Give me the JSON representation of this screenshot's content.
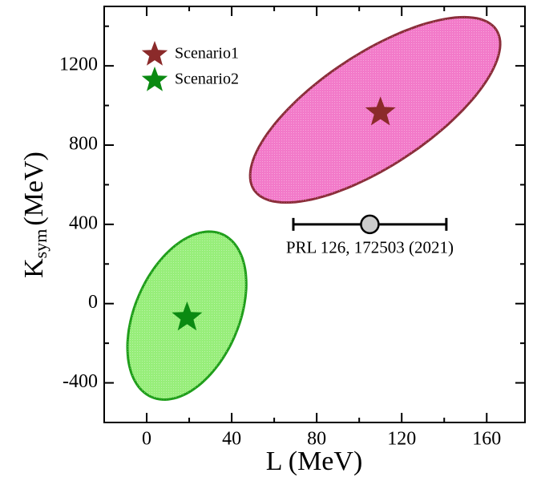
{
  "chart_data": {
    "type": "scatter",
    "xlabel": "L (MeV)",
    "ylabel": {
      "main": "K",
      "sub": "sym",
      "unit": "(MeV)"
    },
    "xlim": [
      -20,
      178
    ],
    "ylim": [
      -600,
      1500
    ],
    "xticks": [
      0,
      40,
      80,
      120,
      160
    ],
    "yticks": [
      -400,
      0,
      400,
      800,
      1200
    ],
    "xminorticks": [
      -20,
      20,
      60,
      100,
      140
    ],
    "yminorticks": [
      -600,
      -200,
      200,
      600,
      1000,
      1400
    ],
    "series": [
      {
        "name": "Scenario1",
        "color": "#8b2a2a",
        "x": [
          110
        ],
        "values": [
          965
        ],
        "region": {
          "center": [
            107.5,
            978
          ],
          "major": [
            57,
            404
          ],
          "minor": [
            14.6,
            -236
          ],
          "fill": "#f27ac9",
          "stroke": "#8b2d3a"
        }
      },
      {
        "name": "Scenario2",
        "color": "#0b8a12",
        "x": [
          19
        ],
        "values": [
          -70
        ],
        "region": {
          "center": [
            18.9,
            -60.6
          ],
          "major": [
            16.6,
            411
          ],
          "minor": [
            22.5,
            -104
          ],
          "fill": "#97ee7a",
          "stroke": "#1f9e1a"
        }
      }
    ],
    "reference": {
      "label": "PRL 126, 172503 (2021)",
      "x": 105,
      "y": 400,
      "xerr": 36,
      "color": "#cccccc"
    },
    "legend": "upper left"
  }
}
